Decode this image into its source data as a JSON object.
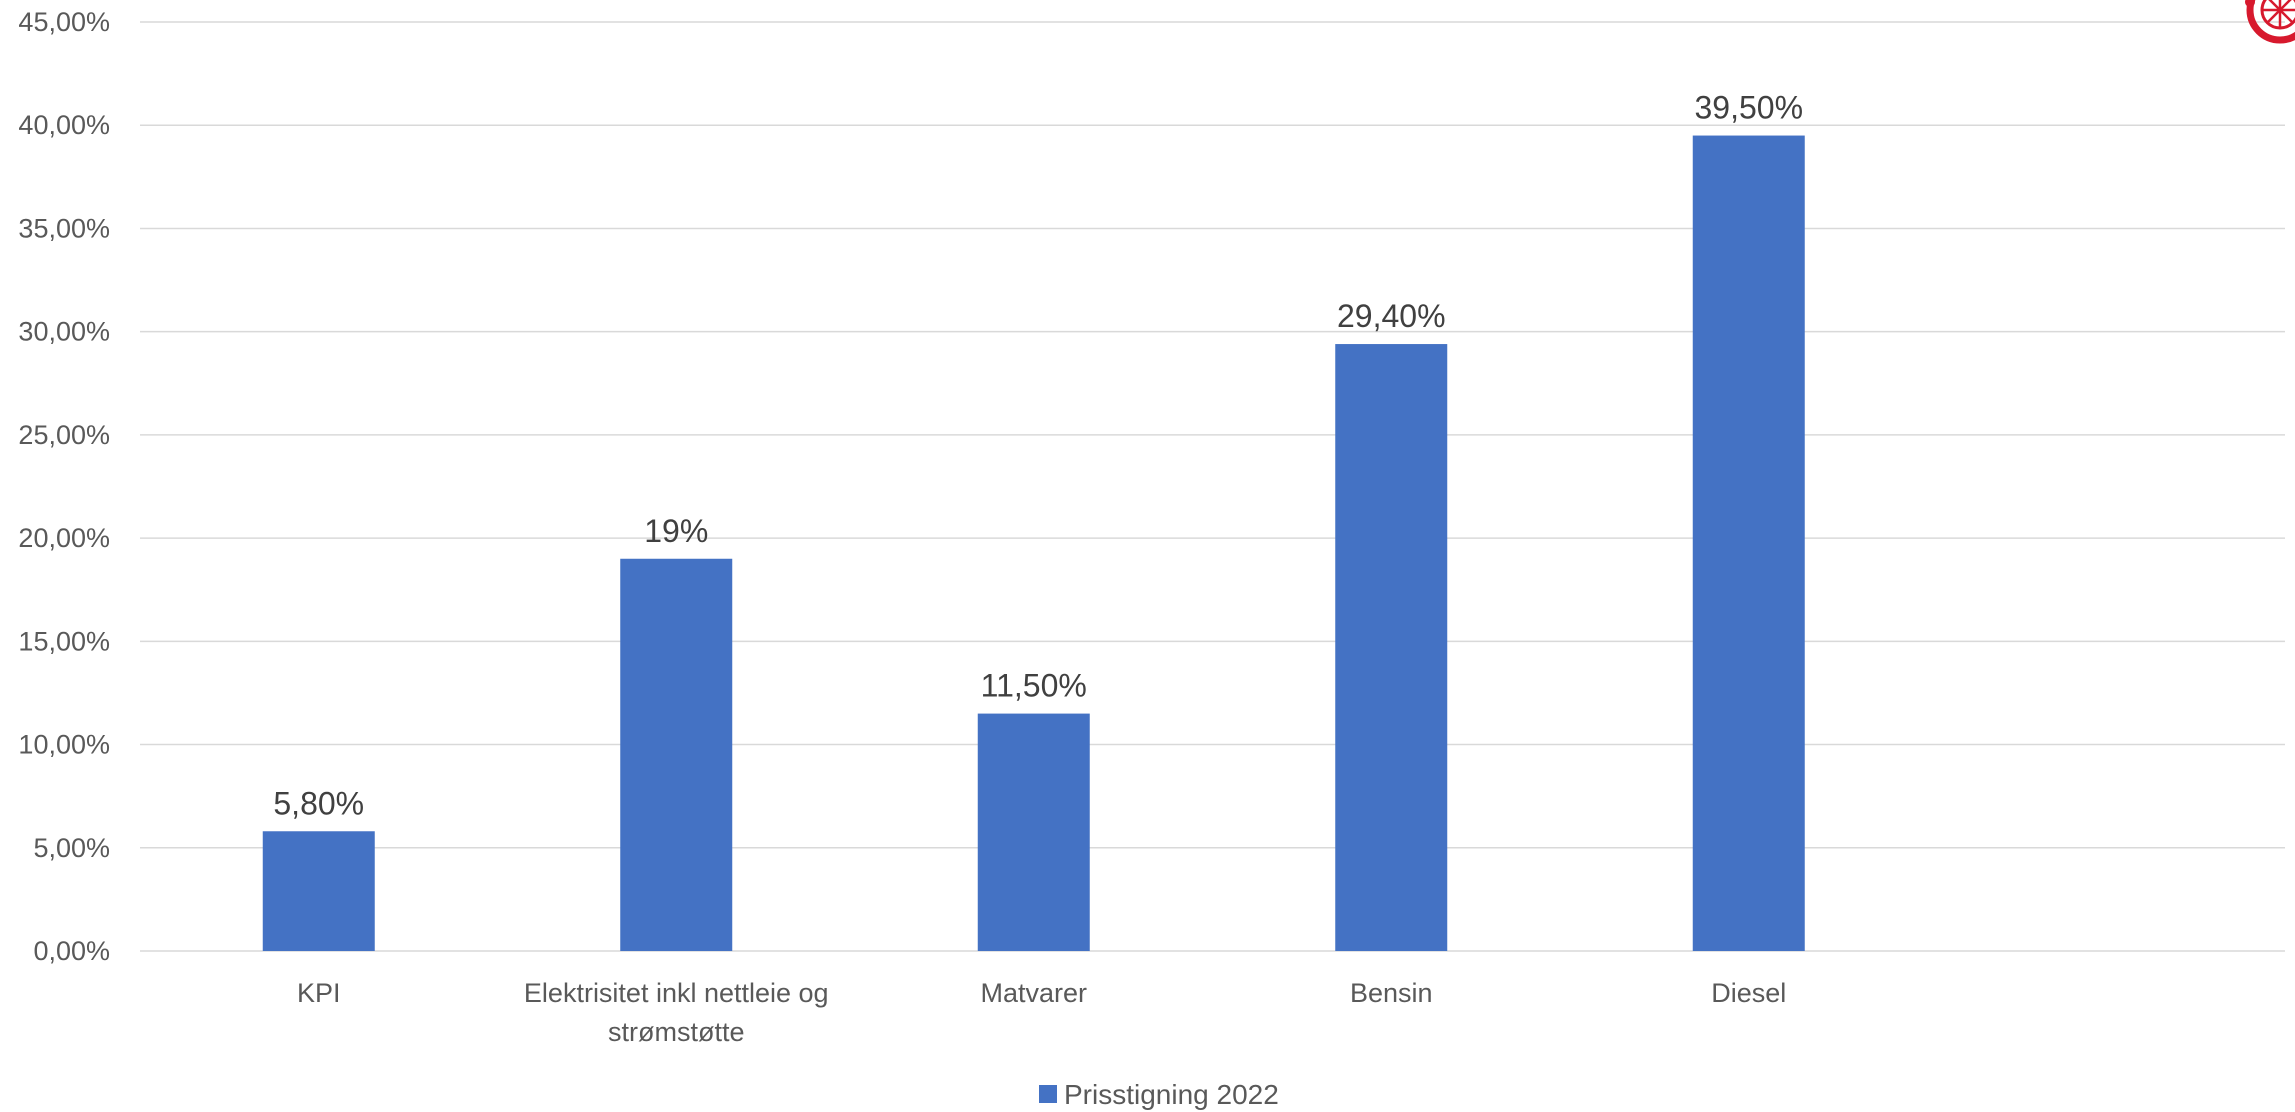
{
  "chart_data": {
    "type": "bar",
    "title": "",
    "xlabel": "",
    "ylabel": "",
    "categories": [
      [
        "KPI"
      ],
      [
        "Elektrisitet inkl nettleie og",
        "strømstøtte"
      ],
      [
        "Matvarer"
      ],
      [
        "Bensin"
      ],
      [
        "Diesel"
      ]
    ],
    "series": [
      {
        "name": "Prisstigning 2022",
        "color": "#4472C4",
        "values": [
          5.8,
          19,
          11.5,
          29.4,
          39.5
        ],
        "labels": [
          "5,80%",
          "19%",
          "11,50%",
          "29,40%",
          "39,50%"
        ]
      }
    ],
    "ylim": [
      0,
      45
    ],
    "yticks": [
      0,
      5,
      10,
      15,
      20,
      25,
      30,
      35,
      40,
      45
    ],
    "ytick_labels": [
      "0,00%",
      "5,00%",
      "10,00%",
      "15,00%",
      "20,00%",
      "25,00%",
      "30,00%",
      "35,00%",
      "40,00%",
      "45,00%"
    ],
    "grid": true,
    "legend": "bottom-center",
    "gridline_color": "#D9D9D9",
    "logo_color": "#D7192D",
    "logo_icon": "wheel-logo-icon"
  }
}
